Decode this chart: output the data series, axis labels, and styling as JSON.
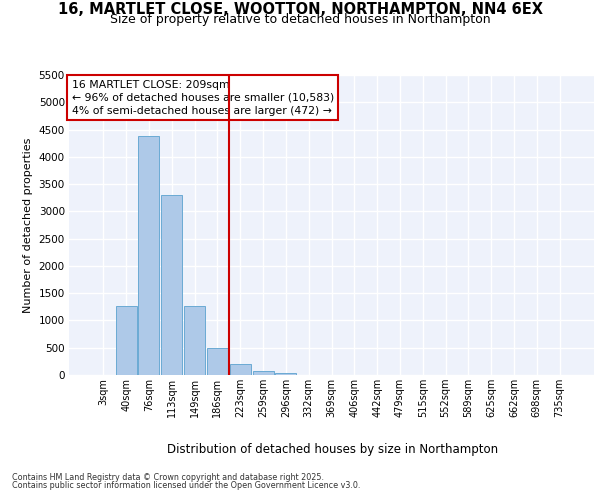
{
  "title_line1": "16, MARTLET CLOSE, WOOTTON, NORTHAMPTON, NN4 6EX",
  "title_line2": "Size of property relative to detached houses in Northampton",
  "xlabel": "Distribution of detached houses by size in Northampton",
  "ylabel": "Number of detached properties",
  "bar_labels": [
    "3sqm",
    "40sqm",
    "76sqm",
    "113sqm",
    "149sqm",
    "186sqm",
    "223sqm",
    "259sqm",
    "296sqm",
    "332sqm",
    "369sqm",
    "406sqm",
    "442sqm",
    "479sqm",
    "515sqm",
    "552sqm",
    "589sqm",
    "625sqm",
    "662sqm",
    "698sqm",
    "735sqm"
  ],
  "bar_values": [
    0,
    1270,
    4380,
    3300,
    1270,
    500,
    210,
    80,
    30,
    0,
    0,
    0,
    0,
    0,
    0,
    0,
    0,
    0,
    0,
    0,
    0
  ],
  "bar_color": "#aec9e8",
  "bar_edge_color": "#6aaad4",
  "vline_color": "#cc0000",
  "ylim": [
    0,
    5500
  ],
  "yticks": [
    0,
    500,
    1000,
    1500,
    2000,
    2500,
    3000,
    3500,
    4000,
    4500,
    5000,
    5500
  ],
  "annotation_text": "16 MARTLET CLOSE: 209sqm\n← 96% of detached houses are smaller (10,583)\n4% of semi-detached houses are larger (472) →",
  "annotation_box_color": "#cc0000",
  "footnote1": "Contains HM Land Registry data © Crown copyright and database right 2025.",
  "footnote2": "Contains public sector information licensed under the Open Government Licence v3.0.",
  "background_color": "#eef2fb",
  "grid_color": "#ffffff",
  "title_fontsize": 10.5,
  "subtitle_fontsize": 9.0
}
